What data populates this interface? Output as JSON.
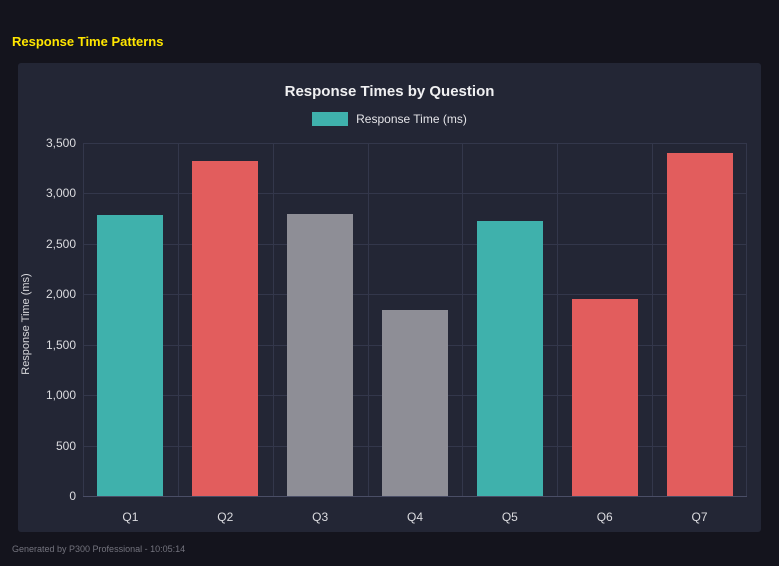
{
  "page": {
    "title": "Response Time Patterns",
    "footer": "Generated by P300 Professional - 10:05:14"
  },
  "colors": {
    "page_background": "#14141d",
    "panel_background": "#232635",
    "accent_yellow": "#ffe600",
    "teal": "#3fb1ac",
    "red": "#e25d5d",
    "gray": "#8e8e96",
    "gridline": "#33374b"
  },
  "chart_data": {
    "type": "bar",
    "title": "Response Times by Question",
    "legend": [
      {
        "label": "Response Time (ms)",
        "color": "#3fb1ac"
      }
    ],
    "legend_position": "top",
    "categories": [
      "Q1",
      "Q2",
      "Q3",
      "Q4",
      "Q5",
      "Q6",
      "Q7"
    ],
    "series": [
      {
        "name": "Response Time (ms)",
        "values": [
          2790,
          3320,
          2800,
          1845,
          2725,
          1955,
          3400
        ]
      }
    ],
    "bar_colors": [
      "#3fb1ac",
      "#e25d5d",
      "#8e8e96",
      "#8e8e96",
      "#3fb1ac",
      "#e25d5d",
      "#e25d5d"
    ],
    "xlabel": "",
    "ylabel": "Response Time (ms)",
    "ylim": [
      0,
      3500
    ],
    "ytick_step": 500,
    "grid": true
  }
}
